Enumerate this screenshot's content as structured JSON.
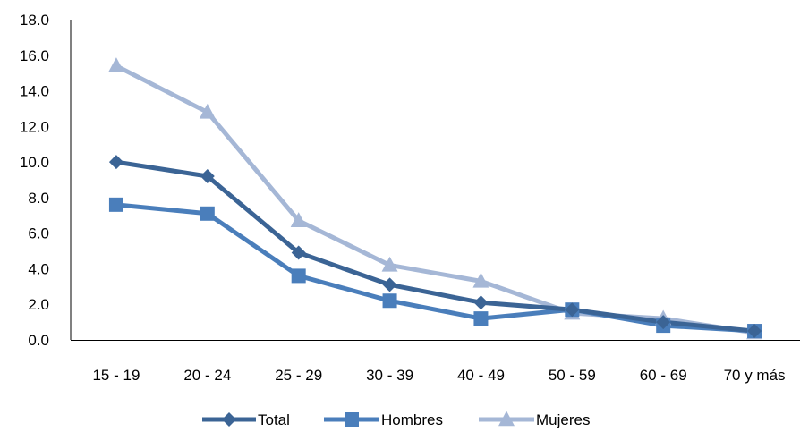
{
  "chart_data": {
    "type": "line",
    "title": "",
    "xlabel": "",
    "ylabel": "",
    "ylim": [
      0,
      18
    ],
    "yticks": [
      "0.0",
      "2.0",
      "4.0",
      "6.0",
      "8.0",
      "10.0",
      "12.0",
      "14.0",
      "16.0",
      "18.0"
    ],
    "grid": false,
    "legend_position": "bottom",
    "categories": [
      "15 - 19",
      "20 - 24",
      "25 - 29",
      "30 - 39",
      "40 - 49",
      "50 - 59",
      "60 - 69",
      "70 y más"
    ],
    "series": [
      {
        "name": "Total",
        "marker": "diamond",
        "color": "#3b6495",
        "values": [
          10.0,
          9.2,
          4.9,
          3.1,
          2.1,
          1.7,
          1.0,
          0.5
        ]
      },
      {
        "name": "Hombres",
        "marker": "square",
        "color": "#4a7ebb",
        "values": [
          7.6,
          7.1,
          3.6,
          2.2,
          1.2,
          1.7,
          0.8,
          0.5
        ]
      },
      {
        "name": "Mujeres",
        "marker": "triangle",
        "color": "#a5b7d6",
        "values": [
          15.4,
          12.8,
          6.7,
          4.2,
          3.3,
          1.5,
          1.2,
          0.4
        ]
      }
    ]
  }
}
